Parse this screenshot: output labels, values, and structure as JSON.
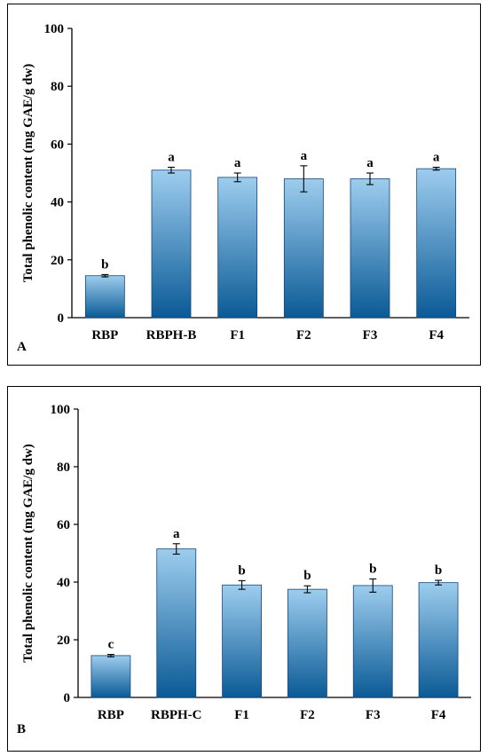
{
  "chart_data": [
    {
      "panel": "A",
      "type": "bar",
      "ylabel": "Total phenolic content (mg GAE/g  dw)",
      "categories": [
        "RBP",
        "RBPH-B",
        "F1",
        "F2",
        "F3",
        "F4"
      ],
      "values": [
        14.5,
        51.0,
        48.5,
        48.0,
        48.0,
        51.5
      ],
      "errors": [
        0.4,
        1.0,
        1.5,
        4.5,
        2.0,
        0.5
      ],
      "letters": [
        "b",
        "a",
        "a",
        "a",
        "a",
        "a"
      ],
      "ylim": [
        0,
        100
      ],
      "yticks": [
        "0",
        "20",
        "40",
        "60",
        "80",
        "100"
      ],
      "grid": false,
      "colors": {
        "bar_top": "#9dcdee",
        "bar_bottom": "#0a5a96",
        "bar_edge": "#14467a"
      }
    },
    {
      "panel": "B",
      "type": "bar",
      "ylabel": "Total phenolic content (mg GAE/g dw)",
      "categories": [
        "RBP",
        "RBPH-C",
        "F1",
        "F2",
        "F3",
        "F4"
      ],
      "values": [
        14.5,
        51.5,
        39.0,
        37.5,
        38.8,
        39.8
      ],
      "errors": [
        0.4,
        1.8,
        1.5,
        1.2,
        2.3,
        0.8
      ],
      "letters": [
        "c",
        "a",
        "b",
        "b",
        "b",
        "b"
      ],
      "ylim": [
        0,
        100
      ],
      "yticks": [
        "0",
        "20",
        "40",
        "60",
        "80",
        "100"
      ],
      "grid": false,
      "colors": {
        "bar_top": "#9dcdee",
        "bar_bottom": "#0a5a96",
        "bar_edge": "#14467a"
      }
    }
  ]
}
